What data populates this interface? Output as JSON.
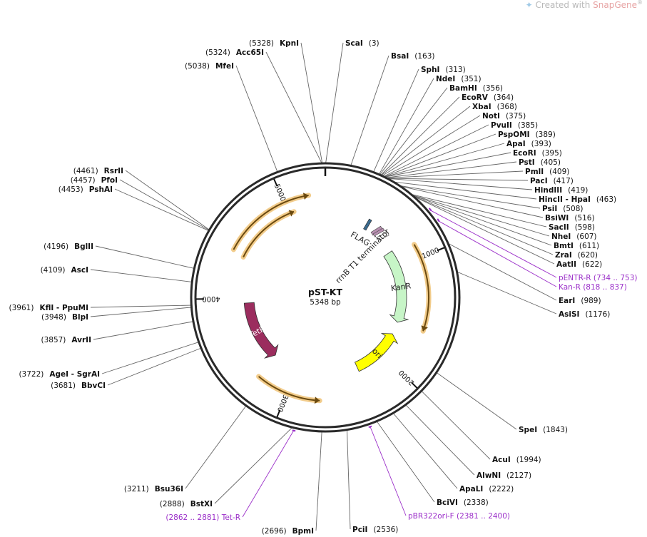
{
  "watermark": {
    "prefix": "Created with ",
    "brand": "SnapGene",
    "suffix": "®"
  },
  "plasmid": {
    "name": "pST-KT",
    "size_label": "5348 bp",
    "length": 5348
  },
  "colors": {
    "backbone": "#2a2a2a",
    "orf": "#e7a740",
    "kanr": "#c7f5c7",
    "ori": "#ffff00",
    "tetr": "#9b2d5e",
    "primer": "#9b2fc9",
    "leader": "#666666"
  },
  "ticks": [
    {
      "pos": 1000,
      "label": "1000"
    },
    {
      "pos": 2000,
      "label": "2000"
    },
    {
      "pos": 3000,
      "label": "3000"
    },
    {
      "pos": 4000,
      "label": "4000"
    },
    {
      "pos": 5000,
      "label": "5000"
    }
  ],
  "features": [
    {
      "name": "KanR",
      "start": 818,
      "end": 1620,
      "dir": 1,
      "kind": "kanr",
      "type": "arrow"
    },
    {
      "name": "ori",
      "start": 1760,
      "end": 2310,
      "dir": -1,
      "kind": "ori",
      "type": "arrow"
    },
    {
      "name": "TetR",
      "start": 3280,
      "end": 3950,
      "dir": -1,
      "kind": "tetr",
      "type": "arrow"
    },
    {
      "name": "FLAG",
      "start": 448,
      "end": 470,
      "kind": "flag",
      "type": "small"
    },
    {
      "name": "rrnB T1 terminator",
      "start": 560,
      "end": 650,
      "kind": "term",
      "type": "small"
    }
  ],
  "orfs": [
    {
      "start": 880,
      "end": 1620,
      "dir": 1,
      "r": 145
    },
    {
      "start": 2720,
      "end": 3270,
      "dir": -1,
      "r": 145
    },
    {
      "start": 4420,
      "end": 5210,
      "dir": 1,
      "r": 145
    },
    {
      "start": 4400,
      "end": 5050,
      "dir": 1,
      "r": 128
    }
  ],
  "enzymes_right": [
    {
      "name": "ScaI",
      "pos": "(3)",
      "site": 3
    },
    {
      "name": "BsaI",
      "pos": "(163)",
      "site": 163
    },
    {
      "name": "SphI",
      "pos": "(313)",
      "site": 313
    },
    {
      "name": "NdeI",
      "pos": "(351)",
      "site": 351
    },
    {
      "name": "BamHI",
      "pos": "(356)",
      "site": 356
    },
    {
      "name": "EcoRV",
      "pos": "(364)",
      "site": 364
    },
    {
      "name": "XbaI",
      "pos": "(368)",
      "site": 368
    },
    {
      "name": "NotI",
      "pos": "(375)",
      "site": 375
    },
    {
      "name": "PvuII",
      "pos": "(385)",
      "site": 385
    },
    {
      "name": "PspOMI",
      "pos": "(389)",
      "site": 389
    },
    {
      "name": "ApaI",
      "pos": "(393)",
      "site": 393
    },
    {
      "name": "EcoRI",
      "pos": "(395)",
      "site": 395
    },
    {
      "name": "PstI",
      "pos": "(405)",
      "site": 405
    },
    {
      "name": "PmlI",
      "pos": "(409)",
      "site": 409
    },
    {
      "name": "PacI",
      "pos": "(417)",
      "site": 417
    },
    {
      "name": "HindIII",
      "pos": "(419)",
      "site": 419
    },
    {
      "name": "HincII - HpaI",
      "pos": "(463)",
      "site": 463
    },
    {
      "name": "PsiI",
      "pos": "(508)",
      "site": 508
    },
    {
      "name": "BsiWI",
      "pos": "(516)",
      "site": 516
    },
    {
      "name": "SacII",
      "pos": "(598)",
      "site": 598
    },
    {
      "name": "NheI",
      "pos": "(607)",
      "site": 607
    },
    {
      "name": "BmtI",
      "pos": "(611)",
      "site": 611
    },
    {
      "name": "ZraI",
      "pos": "(620)",
      "site": 620
    },
    {
      "name": "AatII",
      "pos": "(622)",
      "site": 622
    },
    {
      "name": "EarI",
      "pos": "(989)",
      "site": 989
    },
    {
      "name": "AsiSI",
      "pos": "(1176)",
      "site": 1176
    },
    {
      "name": "SpeI",
      "pos": "(1843)",
      "site": 1843
    },
    {
      "name": "AcuI",
      "pos": "(1994)",
      "site": 1994
    },
    {
      "name": "AlwNI",
      "pos": "(2127)",
      "site": 2127
    },
    {
      "name": "ApaLI",
      "pos": "(2222)",
      "site": 2222
    },
    {
      "name": "BciVI",
      "pos": "(2338)",
      "site": 2338
    },
    {
      "name": "PciI",
      "pos": "(2536)",
      "site": 2536
    }
  ],
  "enzymes_left": [
    {
      "name": "KpnI",
      "pos": "(5328)",
      "site": 5328
    },
    {
      "name": "Acc65I",
      "pos": "(5324)",
      "site": 5324
    },
    {
      "name": "MfeI",
      "pos": "(5038)",
      "site": 5038
    },
    {
      "name": "RsrII",
      "pos": "(4461)",
      "site": 4461
    },
    {
      "name": "PfoI",
      "pos": "(4457)",
      "site": 4457
    },
    {
      "name": "PshAI",
      "pos": "(4453)",
      "site": 4453
    },
    {
      "name": "BglII",
      "pos": "(4196)",
      "site": 4196
    },
    {
      "name": "AscI",
      "pos": "(4109)",
      "site": 4109
    },
    {
      "name": "KflI - PpuMI",
      "pos": "(3961)",
      "site": 3961
    },
    {
      "name": "BlpI",
      "pos": "(3948)",
      "site": 3948
    },
    {
      "name": "AvrII",
      "pos": "(3857)",
      "site": 3857
    },
    {
      "name": "AgeI - SgrAI",
      "pos": "(3722)",
      "site": 3722
    },
    {
      "name": "BbvCI",
      "pos": "(3681)",
      "site": 3681
    },
    {
      "name": "Bsu36I",
      "pos": "(3211)",
      "site": 3211
    },
    {
      "name": "BstXI",
      "pos": "(2888)",
      "site": 2888
    },
    {
      "name": "BpmI",
      "pos": "(2696)",
      "site": 2696
    }
  ],
  "primers": [
    {
      "name": "pENTR-R",
      "range": "(734 .. 753)",
      "site": 743
    },
    {
      "name": "Kan-R",
      "range": "(818 .. 837)",
      "site": 827
    },
    {
      "name": "pBR322ori-F",
      "range": "(2381 .. 2400)",
      "site": 2390
    },
    {
      "name": "Tet-R",
      "range": "(2862 .. 2881)",
      "site": 2871
    }
  ]
}
